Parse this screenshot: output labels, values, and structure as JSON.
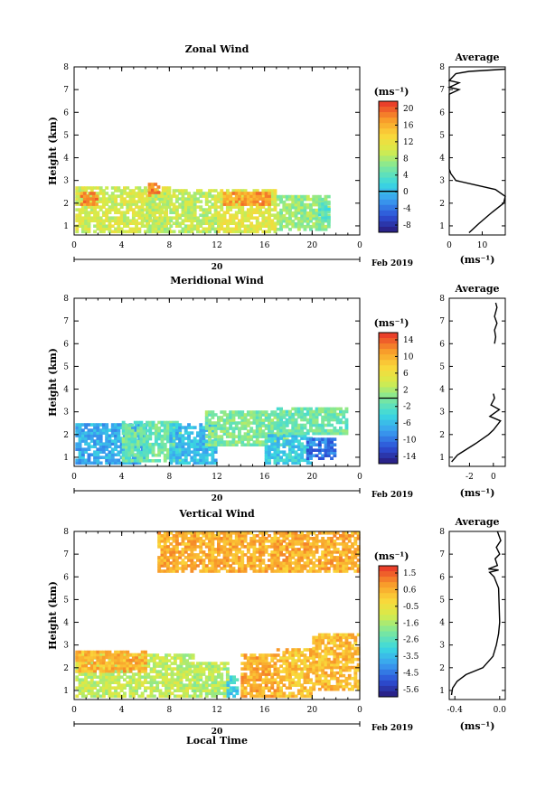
{
  "chart_data": [
    {
      "type": "heatmap",
      "title": "Zonal Wind",
      "ylabel": "Height (km)",
      "xlabel": "",
      "x_ticks": [
        "0",
        "4",
        "8",
        "12",
        "16",
        "20",
        "0"
      ],
      "xlim": [
        0,
        24
      ],
      "y_ticks": [
        "1",
        "2",
        "3",
        "4",
        "5",
        "6",
        "7",
        "8"
      ],
      "ylim": [
        0.6,
        8
      ],
      "day_label": "20",
      "month_label": "Feb 2019",
      "colorbar": {
        "unit": "(ms⁻¹)",
        "ticks": [
          "20",
          "16",
          "12",
          "8",
          "4",
          "0",
          "-4",
          "-8"
        ],
        "range": [
          -10,
          22
        ],
        "contour": 0
      },
      "description_cells": [
        {
          "t0": 0.1,
          "t1": 8,
          "h0": 0.7,
          "h1": 2.7,
          "v": 10
        },
        {
          "t0": 0.5,
          "t1": 2,
          "h0": 1.9,
          "h1": 2.4,
          "v": 18
        },
        {
          "t0": 6,
          "t1": 12,
          "h0": 0.7,
          "h1": 2.6,
          "v": 9
        },
        {
          "t0": 6.2,
          "t1": 7,
          "h0": 2.3,
          "h1": 2.8,
          "v": 18
        },
        {
          "t0": 12,
          "t1": 17,
          "h0": 0.7,
          "h1": 2.6,
          "v": 11
        },
        {
          "t0": 12.5,
          "t1": 16.5,
          "h0": 1.9,
          "h1": 2.5,
          "v": 17
        },
        {
          "t0": 17,
          "t1": 21.5,
          "h0": 0.8,
          "h1": 2.3,
          "v": 7
        },
        {
          "t0": 20.5,
          "t1": 21.5,
          "h0": 1.2,
          "h1": 2.0,
          "v": 4
        }
      ],
      "profile": {
        "title": "Average",
        "xlabel": "(ms⁻¹)",
        "x_ticks": [
          "0",
          "10"
        ],
        "xlim": [
          0,
          17
        ],
        "ylim": [
          0.6,
          8
        ],
        "points": [
          [
            6,
            0.7
          ],
          [
            9,
            1.1
          ],
          [
            13,
            1.6
          ],
          [
            16.5,
            2.0
          ],
          [
            17,
            2.3
          ],
          [
            14,
            2.6
          ],
          [
            8,
            2.8
          ],
          [
            2,
            3.0
          ],
          [
            0.5,
            3.3
          ],
          [
            0,
            3.5
          ],
          [
            0,
            6.8
          ],
          [
            3,
            7.0
          ],
          [
            0,
            7.1
          ],
          [
            3,
            7.3
          ],
          [
            0,
            7.4
          ],
          [
            2,
            7.7
          ],
          [
            6,
            7.8
          ],
          [
            17,
            7.9
          ]
        ]
      }
    },
    {
      "type": "heatmap",
      "title": "Meridional Wind",
      "ylabel": "Height (km)",
      "xlabel": "",
      "x_ticks": [
        "0",
        "4",
        "8",
        "12",
        "16",
        "20",
        "0"
      ],
      "xlim": [
        0,
        24
      ],
      "y_ticks": [
        "1",
        "2",
        "3",
        "4",
        "5",
        "6",
        "7",
        "8"
      ],
      "ylim": [
        0.6,
        8
      ],
      "day_label": "20",
      "month_label": "Feb 2019",
      "colorbar": {
        "unit": "(ms⁻¹)",
        "ticks": [
          "14",
          "10",
          "6",
          "2",
          "-2",
          "-6",
          "-10",
          "-14"
        ],
        "range": [
          -16,
          16
        ],
        "contour": 0
      },
      "description_cells": [
        {
          "t0": 0.1,
          "t1": 6,
          "h0": 0.7,
          "h1": 2.5,
          "v": -7
        },
        {
          "t0": 4,
          "t1": 9,
          "h0": 0.8,
          "h1": 2.6,
          "v": -1
        },
        {
          "t0": 8,
          "t1": 12,
          "h0": 0.7,
          "h1": 2.4,
          "v": -6
        },
        {
          "t0": 11,
          "t1": 18,
          "h0": 1.5,
          "h1": 3.0,
          "v": 0
        },
        {
          "t0": 16,
          "t1": 20,
          "h0": 0.7,
          "h1": 2.0,
          "v": -5
        },
        {
          "t0": 17,
          "t1": 23,
          "h0": 2.0,
          "h1": 3.2,
          "v": -1
        },
        {
          "t0": 19.5,
          "t1": 22,
          "h0": 0.9,
          "h1": 1.8,
          "v": -10
        }
      ],
      "profile": {
        "title": "Average",
        "xlabel": "(ms⁻¹)",
        "x_ticks": [
          "-2",
          "0"
        ],
        "xlim": [
          -3.7,
          1
        ],
        "ylim": [
          0.6,
          8
        ],
        "points": [
          [
            -3.5,
            0.8
          ],
          [
            -3,
            1.1
          ],
          [
            -1.5,
            1.6
          ],
          [
            -0.4,
            2.0
          ],
          [
            0,
            2.2
          ],
          [
            0.6,
            2.6
          ],
          [
            -0.3,
            2.8
          ],
          [
            0.5,
            3.1
          ],
          [
            -0.2,
            3.3
          ],
          [
            0.1,
            3.6
          ],
          [
            0,
            3.8
          ],
          [
            null,
            4.0
          ],
          [
            0.1,
            6.0
          ],
          [
            0.2,
            6.3
          ],
          [
            0.1,
            6.6
          ],
          [
            0.3,
            6.9
          ],
          [
            0.1,
            7.2
          ],
          [
            0.3,
            7.6
          ],
          [
            0.2,
            7.8
          ]
        ]
      }
    },
    {
      "type": "heatmap",
      "title": "Vertical Wind",
      "ylabel": "Height (km)",
      "xlabel": "Local Time",
      "x_ticks": [
        "0",
        "4",
        "8",
        "12",
        "16",
        "20",
        "0"
      ],
      "xlim": [
        0,
        24
      ],
      "y_ticks": [
        "1",
        "2",
        "3",
        "4",
        "5",
        "6",
        "7",
        "8"
      ],
      "ylim": [
        0.6,
        8
      ],
      "day_label": "20",
      "month_label": "Feb 2019",
      "colorbar": {
        "unit": "(ms⁻¹)",
        "ticks": [
          "1.5",
          "0.6",
          "-0.5",
          "-1.6",
          "-2.6",
          "-3.5",
          "-4.5",
          "-5.6"
        ],
        "range": [
          -6.2,
          2.0
        ],
        "contour": null
      },
      "description_cells": [
        {
          "t0": 0.1,
          "t1": 10,
          "h0": 0.7,
          "h1": 2.6,
          "v": -1.3
        },
        {
          "t0": 0.1,
          "t1": 6,
          "h0": 1.8,
          "h1": 2.7,
          "v": 0.4
        },
        {
          "t0": 10,
          "t1": 13,
          "h0": 0.7,
          "h1": 2.2,
          "v": -1.5
        },
        {
          "t0": 12.8,
          "t1": 13.8,
          "h0": 0.7,
          "h1": 1.6,
          "v": -3.2
        },
        {
          "t0": 14,
          "t1": 17,
          "h0": 0.7,
          "h1": 2.6,
          "v": 0.5
        },
        {
          "t0": 17,
          "t1": 20,
          "h0": 0.7,
          "h1": 2.8,
          "v": 0.2
        },
        {
          "t0": 20,
          "t1": 24,
          "h0": 1.0,
          "h1": 3.5,
          "v": 0.3
        },
        {
          "t0": 7,
          "t1": 24,
          "h0": 6.2,
          "h1": 8.0,
          "v": 0.5
        }
      ],
      "profile": {
        "title": "Average",
        "xlabel": "(ms⁻¹)",
        "x_ticks": [
          "-0.4",
          "0.0"
        ],
        "xlim": [
          -0.45,
          0.05
        ],
        "ylim": [
          0.6,
          8
        ],
        "points": [
          [
            -0.43,
            0.8
          ],
          [
            -0.42,
            1.1
          ],
          [
            -0.38,
            1.4
          ],
          [
            -0.3,
            1.7
          ],
          [
            -0.15,
            2.0
          ],
          [
            -0.06,
            2.5
          ],
          [
            -0.03,
            3.0
          ],
          [
            -0.01,
            3.5
          ],
          [
            0.0,
            4.0
          ],
          [
            -0.01,
            5.5
          ],
          [
            -0.05,
            6.0
          ],
          [
            -0.09,
            6.2
          ],
          [
            -0.01,
            6.3
          ],
          [
            -0.1,
            6.35
          ],
          [
            -0.02,
            6.5
          ],
          [
            -0.04,
            6.8
          ],
          [
            0.0,
            7.0
          ],
          [
            -0.03,
            7.3
          ],
          [
            0.01,
            7.6
          ],
          [
            -0.02,
            8.0
          ]
        ]
      }
    }
  ]
}
